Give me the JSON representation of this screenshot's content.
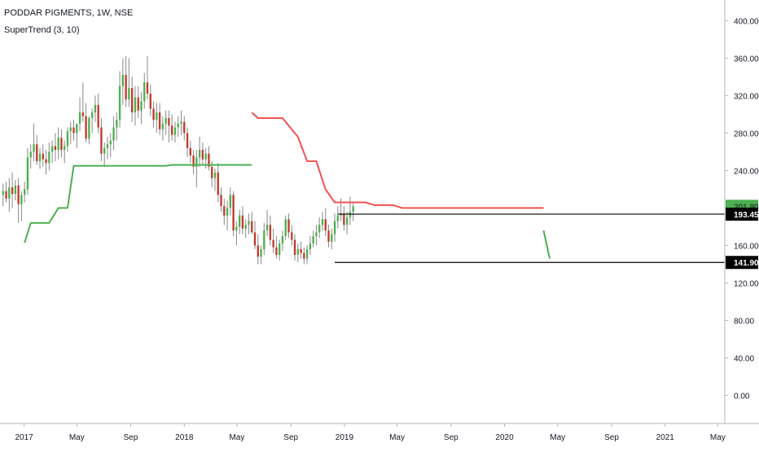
{
  "header": {
    "title": "PODDAR PIGMENTS, 1W, NSE",
    "indicator": "SuperTrend (3, 10)"
  },
  "chart_data": {
    "type": "candlestick",
    "symbol": "PODDAR PIGMENTS",
    "interval": "1W",
    "exchange": "NSE",
    "indicator": "SuperTrend (3, 10)",
    "x_range": [
      "2016-11-07",
      "2021-05-17"
    ],
    "ylim": [
      -30,
      422
    ],
    "y_ticks": [
      0,
      40,
      80,
      120,
      160,
      200,
      240,
      280,
      320,
      360,
      400
    ],
    "y_tick_labels": [
      "0.00",
      "40.00",
      "80.00",
      "120.00",
      "160.00",
      "200.00",
      "240.00",
      "280.00",
      "320.00",
      "360.00",
      "400.00"
    ],
    "x_ticks": [
      {
        "label": "2017",
        "date": "2017-01-01"
      },
      {
        "label": "May",
        "date": "2017-05-01"
      },
      {
        "label": "Sep",
        "date": "2017-09-01"
      },
      {
        "label": "2018",
        "date": "2018-01-01"
      },
      {
        "label": "May",
        "date": "2018-05-01"
      },
      {
        "label": "Sep",
        "date": "2018-09-01"
      },
      {
        "label": "2019",
        "date": "2019-01-01"
      },
      {
        "label": "May",
        "date": "2019-05-01"
      },
      {
        "label": "Sep",
        "date": "2019-09-01"
      },
      {
        "label": "2020",
        "date": "2020-01-01"
      },
      {
        "label": "May",
        "date": "2020-05-01"
      },
      {
        "label": "Sep",
        "date": "2020-09-01"
      },
      {
        "label": "2021",
        "date": "2021-01-01"
      },
      {
        "label": "May",
        "date": "2021-05-01"
      }
    ],
    "price_badges": [
      {
        "value": 201.8,
        "label": "201.80",
        "color": "#4caf50",
        "text_color": "#131722"
      },
      {
        "value": 193.45,
        "label": "193.45",
        "color": "#000000",
        "text_color": "#ffffff"
      },
      {
        "value": 141.9,
        "label": "141.90",
        "color": "#000000",
        "text_color": "#ffffff"
      }
    ],
    "horizontal_lines": [
      {
        "value": 193.45,
        "start": "2018-12-17",
        "end": "2021-05-17",
        "color": "#000000"
      },
      {
        "value": 141.9,
        "start": "2018-12-10",
        "end": "2021-05-17",
        "color": "#000000"
      }
    ],
    "candles": {
      "start": "2016-11-14",
      "interval_days": 7,
      "up_color": "#4caf50",
      "down_color": "#c0392b",
      "wick_color": "#888888",
      "ohlc": [
        [
          214,
          226,
          202,
          218
        ],
        [
          218,
          228,
          206,
          210
        ],
        [
          210,
          232,
          196,
          222
        ],
        [
          222,
          238,
          200,
          215
        ],
        [
          215,
          230,
          208,
          224
        ],
        [
          224,
          232,
          184,
          204
        ],
        [
          204,
          218,
          186,
          214
        ],
        [
          214,
          228,
          206,
          220
        ],
        [
          220,
          264,
          214,
          254
        ],
        [
          254,
          268,
          242,
          260
        ],
        [
          260,
          290,
          250,
          268
        ],
        [
          268,
          278,
          246,
          250
        ],
        [
          250,
          264,
          242,
          258
        ],
        [
          258,
          268,
          244,
          252
        ],
        [
          252,
          262,
          236,
          248
        ],
        [
          248,
          270,
          240,
          260
        ],
        [
          260,
          272,
          248,
          266
        ],
        [
          266,
          280,
          250,
          262
        ],
        [
          262,
          286,
          252,
          275
        ],
        [
          275,
          284,
          254,
          262
        ],
        [
          262,
          272,
          248,
          266
        ],
        [
          266,
          286,
          260,
          282
        ],
        [
          282,
          292,
          268,
          286
        ],
        [
          286,
          294,
          272,
          280
        ],
        [
          280,
          290,
          264,
          290
        ],
        [
          290,
          318,
          282,
          302
        ],
        [
          302,
          334,
          292,
          298
        ],
        [
          298,
          312,
          270,
          274
        ],
        [
          274,
          298,
          268,
          296
        ],
        [
          296,
          306,
          280,
          302
        ],
        [
          302,
          320,
          292,
          310
        ],
        [
          310,
          322,
          280,
          286
        ],
        [
          286,
          296,
          250,
          258
        ],
        [
          258,
          270,
          244,
          264
        ],
        [
          264,
          276,
          252,
          268
        ],
        [
          268,
          280,
          254,
          272
        ],
        [
          272,
          298,
          262,
          286
        ],
        [
          286,
          302,
          272,
          294
        ],
        [
          294,
          346,
          286,
          330
        ],
        [
          330,
          360,
          310,
          342
        ],
        [
          342,
          362,
          308,
          316
        ],
        [
          316,
          360,
          308,
          328
        ],
        [
          328,
          340,
          292,
          302
        ],
        [
          302,
          330,
          288,
          318
        ],
        [
          318,
          330,
          296,
          304
        ],
        [
          304,
          324,
          290,
          314
        ],
        [
          314,
          344,
          306,
          334
        ],
        [
          334,
          362,
          316,
          322
        ],
        [
          322,
          332,
          298,
          306
        ],
        [
          306,
          314,
          286,
          294
        ],
        [
          294,
          312,
          280,
          302
        ],
        [
          302,
          312,
          278,
          284
        ],
        [
          284,
          298,
          272,
          290
        ],
        [
          290,
          304,
          278,
          296
        ],
        [
          296,
          304,
          270,
          288
        ],
        [
          288,
          300,
          272,
          278
        ],
        [
          278,
          292,
          270,
          286
        ],
        [
          286,
          298,
          276,
          290
        ],
        [
          290,
          304,
          278,
          292
        ],
        [
          292,
          298,
          272,
          280
        ],
        [
          280,
          286,
          254,
          264
        ],
        [
          264,
          272,
          248,
          256
        ],
        [
          256,
          262,
          236,
          244
        ],
        [
          244,
          262,
          222,
          254
        ],
        [
          254,
          276,
          244,
          262
        ],
        [
          262,
          270,
          246,
          252
        ],
        [
          252,
          264,
          242,
          258
        ],
        [
          258,
          266,
          240,
          244
        ],
        [
          244,
          250,
          222,
          232
        ],
        [
          232,
          242,
          218,
          238
        ],
        [
          238,
          248,
          206,
          214
        ],
        [
          214,
          222,
          196,
          202
        ],
        [
          202,
          210,
          182,
          192
        ],
        [
          192,
          208,
          176,
          200
        ],
        [
          200,
          222,
          192,
          214
        ],
        [
          214,
          218,
          170,
          176
        ],
        [
          176,
          186,
          160,
          180
        ],
        [
          180,
          198,
          172,
          192
        ],
        [
          192,
          202,
          172,
          178
        ],
        [
          178,
          188,
          168,
          182
        ],
        [
          182,
          194,
          172,
          186
        ],
        [
          186,
          196,
          172,
          174
        ],
        [
          174,
          186,
          156,
          160
        ],
        [
          160,
          172,
          140,
          148
        ],
        [
          148,
          160,
          140,
          156
        ],
        [
          156,
          184,
          150,
          176
        ],
        [
          176,
          198,
          170,
          182
        ],
        [
          182,
          192,
          160,
          166
        ],
        [
          166,
          178,
          152,
          158
        ],
        [
          158,
          170,
          146,
          150
        ],
        [
          150,
          166,
          144,
          162
        ],
        [
          162,
          176,
          154,
          170
        ],
        [
          170,
          192,
          166,
          188
        ],
        [
          188,
          194,
          168,
          174
        ],
        [
          174,
          182,
          160,
          166
        ],
        [
          166,
          172,
          144,
          150
        ],
        [
          150,
          162,
          142,
          156
        ],
        [
          156,
          164,
          146,
          152
        ],
        [
          152,
          158,
          140,
          146
        ],
        [
          146,
          160,
          140,
          156
        ],
        [
          156,
          170,
          150,
          162
        ],
        [
          162,
          176,
          158,
          170
        ],
        [
          170,
          182,
          160,
          174
        ],
        [
          174,
          190,
          168,
          182
        ],
        [
          182,
          196,
          176,
          188
        ],
        [
          188,
          200,
          170,
          176
        ],
        [
          176,
          182,
          158,
          164
        ],
        [
          164,
          178,
          156,
          172
        ],
        [
          172,
          194,
          164,
          186
        ],
        [
          186,
          202,
          178,
          192
        ],
        [
          192,
          210,
          186,
          194
        ],
        [
          194,
          202,
          176,
          182
        ],
        [
          182,
          196,
          172,
          190
        ],
        [
          190,
          212,
          182,
          196
        ],
        [
          196,
          206,
          186,
          201.8
        ]
      ]
    },
    "supertrend": [
      {
        "trend": "up",
        "color": "#4caf50",
        "points": [
          [
            "2017-01-02",
            163
          ],
          [
            "2017-01-16",
            184
          ],
          [
            "2017-02-27",
            184
          ],
          [
            "2017-03-20",
            200
          ],
          [
            "2017-04-10",
            200
          ],
          [
            "2017-04-24",
            245
          ],
          [
            "2017-11-20",
            245
          ],
          [
            "2017-12-04",
            246
          ],
          [
            "2018-06-04",
            246
          ]
        ]
      },
      {
        "trend": "down",
        "color": "#ef5350",
        "points": [
          [
            "2018-06-04",
            302
          ],
          [
            "2018-06-18",
            296
          ],
          [
            "2018-08-13",
            296
          ],
          [
            "2018-09-17",
            276
          ],
          [
            "2018-10-08",
            250
          ],
          [
            "2018-10-29",
            250
          ],
          [
            "2018-11-19",
            220
          ],
          [
            "2018-12-10",
            206
          ],
          [
            "2019-02-18",
            206
          ],
          [
            "2019-03-11",
            203
          ],
          [
            "2019-04-22",
            203
          ],
          [
            "2019-05-13",
            200
          ],
          [
            "2020-03-30",
            200
          ]
        ]
      },
      {
        "trend": "up",
        "color": "#4caf50",
        "points": [
          [
            "2020-03-30",
            176
          ],
          [
            "2020-04-13",
            146
          ]
        ]
      }
    ]
  }
}
